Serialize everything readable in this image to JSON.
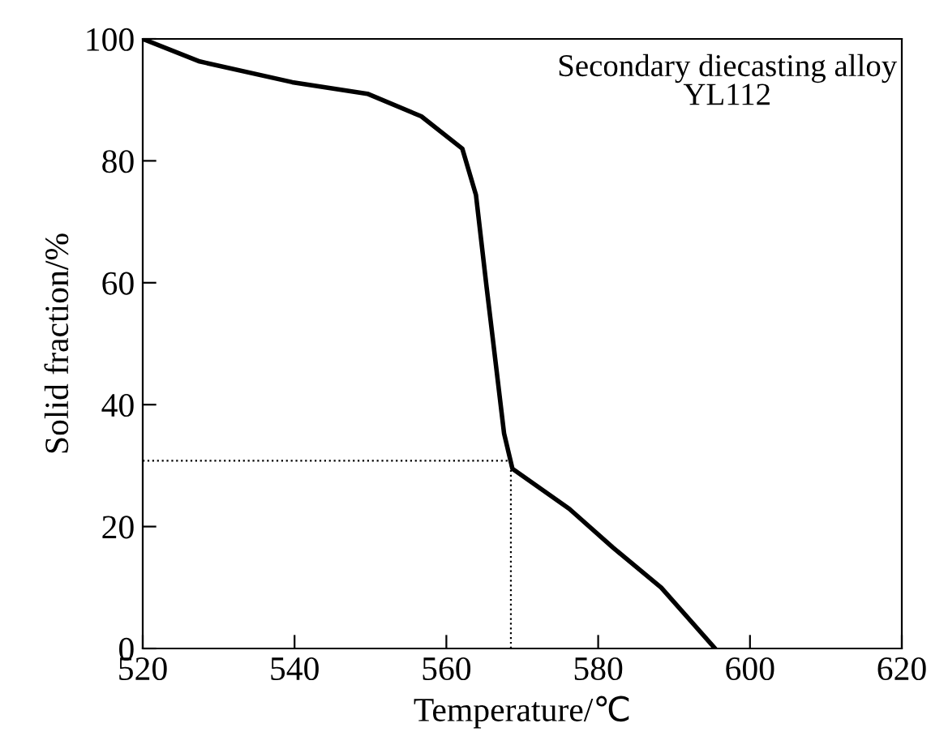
{
  "chart_data": {
    "type": "line",
    "xlabel": "Temperature/℃",
    "ylabel": "Solid fraction/%",
    "annotations": [
      "Secondary diecasting alloy\nYL112"
    ],
    "series": [
      {
        "color": "#000000",
        "x": [
          520,
          527.5,
          539.7,
          549.6,
          556.7,
          562.1,
          563.9,
          565.3,
          566.1,
          567.6,
          568.7,
          576.2,
          581.9,
          588.3,
          595.4
        ],
        "values": [
          100,
          96.3,
          92.9,
          91.0,
          87.3,
          82.0,
          74.4,
          59.3,
          51,
          35.3,
          29.5,
          22.9,
          16.6,
          10,
          0
        ]
      }
    ],
    "ref_lines": [
      {
        "axis": "x",
        "value": 568.5,
        "line_style": "dotted",
        "color": "#000000"
      },
      {
        "axis": "y",
        "value": 30.8,
        "line_style": "dotted",
        "color": "#000000"
      }
    ],
    "xlim": [
      520,
      620
    ],
    "ylim": [
      0,
      100
    ],
    "xticks": [
      520,
      540,
      560,
      580,
      600,
      620
    ],
    "yticks": [
      0,
      20,
      40,
      60,
      80,
      100
    ],
    "grid": false,
    "legend": false,
    "marker": "none",
    "line_style": "solid"
  }
}
